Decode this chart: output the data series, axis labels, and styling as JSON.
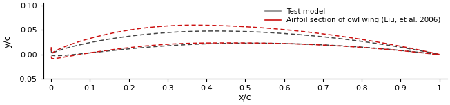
{
  "xlabel": "x/c",
  "ylabel": "y/c",
  "xlim": [
    -0.02,
    1.02
  ],
  "ylim": [
    -0.05,
    0.105
  ],
  "yticks": [
    -0.05,
    0.0,
    0.05,
    0.1
  ],
  "xticks": [
    0,
    0.1,
    0.2,
    0.3,
    0.4,
    0.5,
    0.6,
    0.7,
    0.8,
    0.9,
    1
  ],
  "test_color": "#444444",
  "owl_color": "#cc1111",
  "legend_labels": [
    "Test model",
    "Airfoil section of owl wing (Liu, et al. 2006)"
  ],
  "background_color": "#ffffff",
  "legend_line_color_test": "#888888",
  "legend_line_color_owl": "#cc1111"
}
